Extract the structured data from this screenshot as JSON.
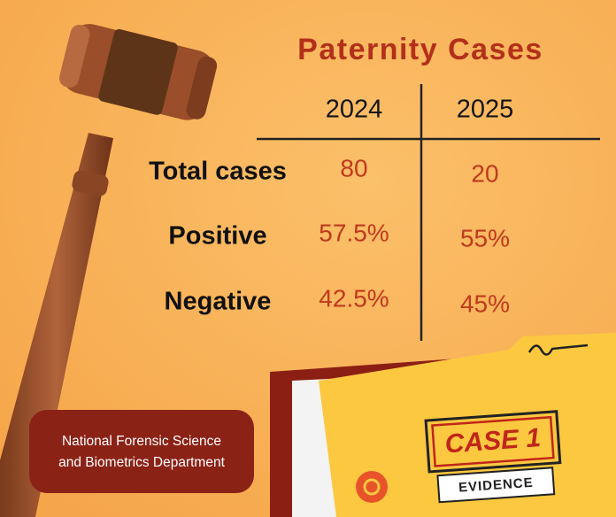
{
  "header": {
    "title": "Paternity Cases"
  },
  "table": {
    "columns": [
      "2024",
      "2025"
    ],
    "rows": [
      {
        "label": "Total cases",
        "values": [
          "80",
          "20"
        ]
      },
      {
        "label": "Positive",
        "values": [
          "57.5%",
          "55%"
        ]
      },
      {
        "label": "Negative",
        "values": [
          "42.5%",
          "45%"
        ]
      }
    ]
  },
  "footer": {
    "lines": [
      "National Forensic Science",
      "and Biometrics Department"
    ]
  },
  "folder": {
    "case": "CASE 1",
    "label": "EVIDENCE"
  }
}
